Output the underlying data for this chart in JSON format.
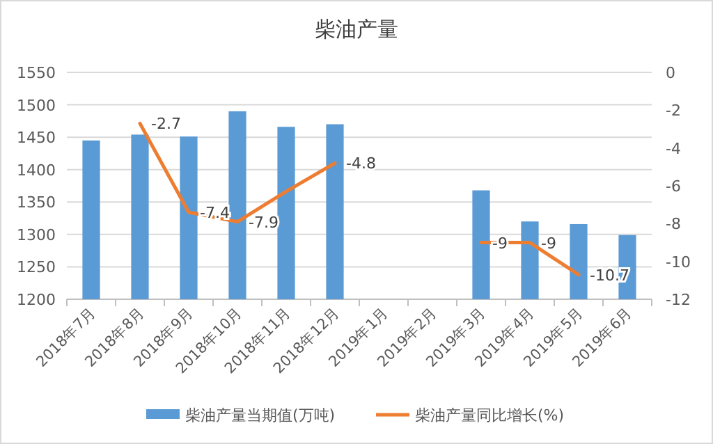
{
  "chart_data": {
    "type": "bar",
    "title": "柴油产量",
    "categories": [
      "2018年7月",
      "2018年8月",
      "2018年9月",
      "2018年10月",
      "2018年11月",
      "2018年12月",
      "2019年1月",
      "2019年2月",
      "2019年3月",
      "2019年4月",
      "2019年5月",
      "2019年6月"
    ],
    "series": [
      {
        "name": "柴油产量当期值(万吨)",
        "color": "#5b9bd5",
        "values": [
          1445,
          1454,
          1451,
          1490,
          1466,
          1470,
          null,
          null,
          1368,
          1320,
          1316,
          1299
        ]
      },
      {
        "name": "柴油产量同比增长(%)",
        "type": "line",
        "axis": "y2",
        "color": "#ed7d31",
        "values": [
          null,
          -2.7,
          -7.4,
          -7.9,
          -6.3,
          -4.8,
          null,
          null,
          -9,
          -9,
          -10.7,
          null
        ],
        "value_labels": [
          null,
          "-2.7",
          "-7.4",
          "-7.9",
          null,
          "-4.8",
          null,
          null,
          "-9",
          "-9",
          "-10.7",
          null
        ]
      }
    ],
    "ylim": [
      1200,
      1550
    ],
    "yticks": [
      1200,
      1250,
      1300,
      1350,
      1400,
      1450,
      1500,
      1550
    ],
    "y2lim": [
      -12,
      0
    ],
    "y2ticks": [
      -12,
      -10,
      -8,
      -6,
      -4,
      -2,
      0
    ],
    "grid": "y",
    "legend": "bottom",
    "marker": "none"
  }
}
